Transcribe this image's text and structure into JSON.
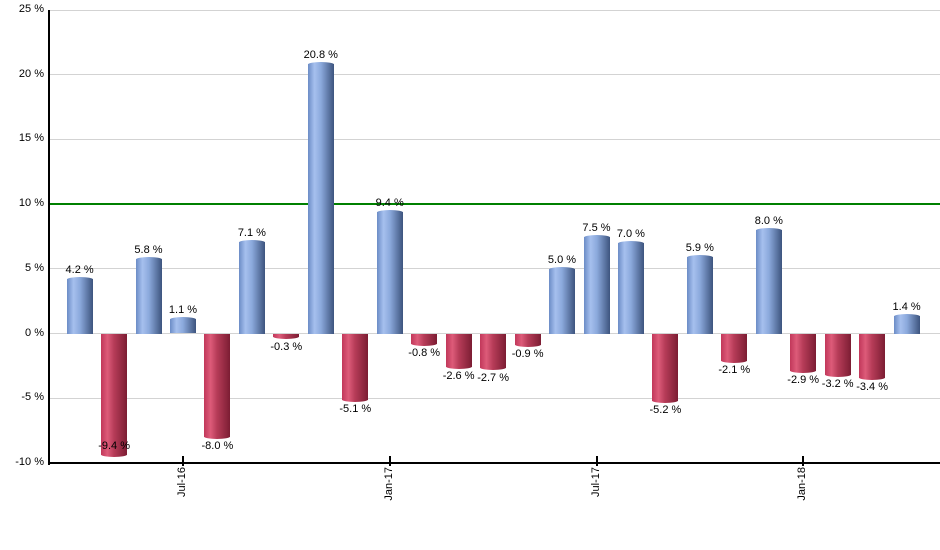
{
  "chart_data": {
    "type": "bar",
    "title": "",
    "xlabel": "",
    "ylabel": "",
    "ylim": [
      -10,
      25
    ],
    "grid": true,
    "legend": null,
    "y_ticks": [
      {
        "value": 25,
        "label": "25 %"
      },
      {
        "value": 20,
        "label": "20 %"
      },
      {
        "value": 15,
        "label": "15 %"
      },
      {
        "value": 10,
        "label": "10 %"
      },
      {
        "value": 5,
        "label": "5 %"
      },
      {
        "value": 0,
        "label": "0 %"
      },
      {
        "value": -5,
        "label": "-5 %"
      },
      {
        "value": -10,
        "label": "-10 %"
      }
    ],
    "reference_line": {
      "value": 10
    },
    "x_ticks": [
      {
        "label": "Jul-16",
        "bar_index": 3
      },
      {
        "label": "Jan-17",
        "bar_index": 9
      },
      {
        "label": "Jul-17",
        "bar_index": 15
      },
      {
        "label": "Jan-18",
        "bar_index": 21
      }
    ],
    "bars": [
      {
        "value": 4.2,
        "label": "4.2 %",
        "color": "positive"
      },
      {
        "value": -9.4,
        "label": "-9.4 %",
        "color": "negative"
      },
      {
        "value": 5.8,
        "label": "5.8 %",
        "color": "positive"
      },
      {
        "value": 1.1,
        "label": "1.1 %",
        "color": "positive"
      },
      {
        "value": -8.0,
        "label": "-8.0 %",
        "color": "negative"
      },
      {
        "value": 7.1,
        "label": "7.1 %",
        "color": "positive"
      },
      {
        "value": -0.3,
        "label": "-0.3 %",
        "color": "negative"
      },
      {
        "value": 20.8,
        "label": "20.8 %",
        "color": "positive"
      },
      {
        "value": -5.1,
        "label": "-5.1 %",
        "color": "negative"
      },
      {
        "value": 9.4,
        "label": "9.4 %",
        "color": "positive"
      },
      {
        "value": -0.8,
        "label": "-0.8 %",
        "color": "negative"
      },
      {
        "value": -2.6,
        "label": "-2.6 %",
        "color": "negative"
      },
      {
        "value": -2.7,
        "label": "-2.7 %",
        "color": "negative"
      },
      {
        "value": -0.9,
        "label": "-0.9 %",
        "color": "negative"
      },
      {
        "value": 5.0,
        "label": "5.0 %",
        "color": "positive"
      },
      {
        "value": 7.5,
        "label": "7.5 %",
        "color": "positive"
      },
      {
        "value": 7.0,
        "label": "7.0 %",
        "color": "positive"
      },
      {
        "value": -5.2,
        "label": "-5.2 %",
        "color": "negative"
      },
      {
        "value": 5.9,
        "label": "5.9 %",
        "color": "positive"
      },
      {
        "value": -2.1,
        "label": "-2.1 %",
        "color": "negative"
      },
      {
        "value": 8.0,
        "label": "8.0 %",
        "color": "positive"
      },
      {
        "value": -2.9,
        "label": "-2.9 %",
        "color": "negative"
      },
      {
        "value": -3.2,
        "label": "-3.2 %",
        "color": "negative"
      },
      {
        "value": -3.4,
        "label": "-3.4 %",
        "color": "negative"
      },
      {
        "value": 1.4,
        "label": "1.4 %",
        "color": "positive"
      }
    ],
    "colors": {
      "positive_bar_gradient": [
        "#6B8CC6",
        "#A6C0EE",
        "#8BA9DC",
        "#3D547E"
      ],
      "negative_bar_gradient": [
        "#C1375A",
        "#DD5B79",
        "#B63C58",
        "#7C1D33"
      ],
      "gridline": "#D3D3D3",
      "axis": "#000000",
      "reference_line": "#008000",
      "label_text": "#000000",
      "background": "#FFFFFF"
    }
  }
}
